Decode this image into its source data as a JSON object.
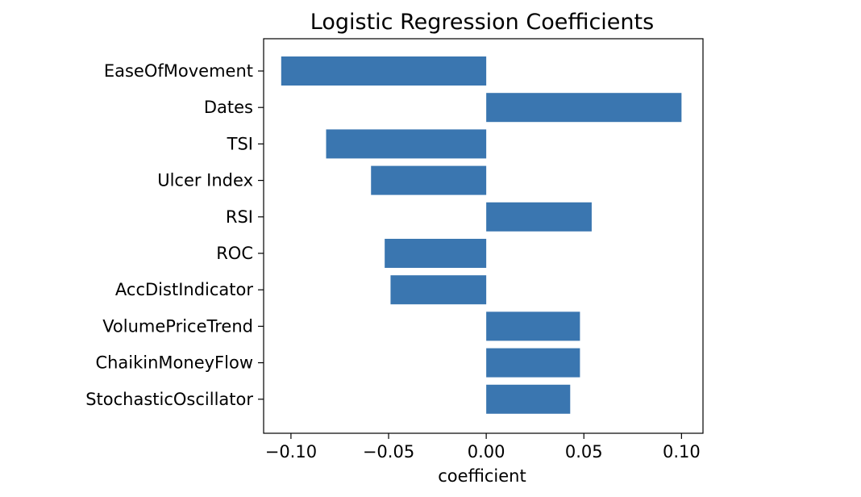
{
  "chart_data": {
    "type": "bar",
    "orientation": "horizontal",
    "title": "Logistic Regression Coefficients",
    "xlabel": "coefficient",
    "ylabel": "",
    "categories": [
      "EaseOfMovement",
      "Dates",
      "TSI",
      "Ulcer Index",
      "RSI",
      "ROC",
      "AccDistIndicator",
      "VolumePriceTrend",
      "ChaikinMoneyFlow",
      "StochasticOscillator"
    ],
    "values": [
      -0.105,
      0.1,
      -0.082,
      -0.059,
      0.054,
      -0.052,
      -0.049,
      0.048,
      0.048,
      0.043
    ],
    "xlim": [
      -0.114,
      0.111
    ],
    "xticks": [
      -0.1,
      -0.05,
      0.0,
      0.05,
      0.1
    ],
    "xtick_labels": [
      "−0.10",
      "−0.05",
      "0.00",
      "0.05",
      "0.10"
    ],
    "bar_color": "#3a76b0",
    "grid": false,
    "legend": "none"
  }
}
